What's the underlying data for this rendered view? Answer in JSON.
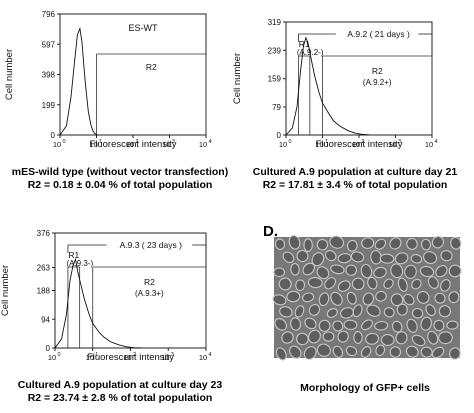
{
  "figure": {
    "panel_d_letter": "D.",
    "micrograph_caption": "Morphology of GFP+ cells"
  },
  "chart_data": [
    {
      "type": "line",
      "title": "ES-WT",
      "xlabel": "Fluorescent intensity",
      "ylabel": "Cell number",
      "xscale": "log",
      "xlim": [
        1,
        10000
      ],
      "ylim": [
        0,
        796
      ],
      "yticks": [
        0,
        199,
        398,
        597,
        796
      ],
      "xtick_labels": [
        {
          "base": "10",
          "exp": "0"
        },
        {
          "base": "10",
          "exp": "1"
        },
        {
          "base": "10",
          "exp": "2"
        },
        {
          "base": "10",
          "exp": "3"
        },
        {
          "base": "10",
          "exp": "4"
        }
      ],
      "gates": [
        {
          "label": "R2",
          "x_start": 10,
          "x_end": 10000
        }
      ],
      "bracket": null,
      "series": [
        {
          "x": [
            1,
            1.5,
            2,
            2.5,
            3,
            3.5,
            4,
            4.5,
            5,
            6,
            7,
            8,
            9,
            10,
            11
          ],
          "y": [
            0,
            60,
            250,
            480,
            660,
            700,
            610,
            460,
            330,
            150,
            70,
            25,
            10,
            4,
            0
          ]
        }
      ],
      "caption_lines": [
        "mES-wild type (without vector transfection)",
        "R2 = 0.18 ± 0.04 % of total population"
      ]
    },
    {
      "type": "line",
      "title": "",
      "xlabel": "Fluorescent intensity",
      "ylabel": "Cell number",
      "xscale": "log",
      "xlim": [
        1,
        10000
      ],
      "ylim": [
        0,
        319
      ],
      "yticks": [
        0,
        79,
        159,
        239,
        319
      ],
      "xtick_labels": [
        {
          "base": "10",
          "exp": "0"
        },
        {
          "base": "10",
          "exp": "1"
        },
        {
          "base": "10",
          "exp": "2"
        },
        {
          "base": "10",
          "exp": "3"
        },
        {
          "base": "10",
          "exp": "4"
        }
      ],
      "gates": [
        {
          "label": "R1",
          "sublabel": "(A.9.2-)",
          "x_start": 2.2,
          "x_end": 4.5
        },
        {
          "label": "R2",
          "sublabel": "(A.9.2+)",
          "x_start": 10,
          "x_end": 10000
        }
      ],
      "bracket": {
        "label": "A.9.2  ( 21 days )",
        "x_start": 2.2,
        "x_end": 10000
      },
      "series": [
        {
          "x": [
            1,
            1.5,
            2,
            2.5,
            3,
            3.5,
            4,
            5,
            6,
            8,
            10,
            15,
            20,
            30,
            50,
            80,
            120,
            200
          ],
          "y": [
            0,
            20,
            80,
            180,
            250,
            275,
            260,
            210,
            170,
            120,
            90,
            60,
            40,
            25,
            12,
            5,
            2,
            0
          ]
        }
      ],
      "caption_lines": [
        "Cultured A.9 population at culture day 21",
        "R2 = 17.81 ± 3.4 % of total population"
      ]
    },
    {
      "type": "line",
      "title": "",
      "xlabel": "Fluorescent intensity",
      "ylabel": "Cell number",
      "xscale": "log",
      "xlim": [
        1,
        10000
      ],
      "ylim": [
        0,
        376
      ],
      "yticks": [
        0,
        94,
        188,
        263,
        376
      ],
      "xtick_labels": [
        {
          "base": "10",
          "exp": "0"
        },
        {
          "base": "10",
          "exp": "1"
        },
        {
          "base": "10",
          "exp": "2"
        },
        {
          "base": "10",
          "exp": "3"
        },
        {
          "base": "10",
          "exp": "4"
        }
      ],
      "gates": [
        {
          "label": "R1",
          "sublabel": "(A.9.3-)",
          "x_start": 2.2,
          "x_end": 4.5
        },
        {
          "label": "R2",
          "sublabel": "(A.9.3+)",
          "x_start": 10,
          "x_end": 10000
        }
      ],
      "bracket": {
        "label": "A.9.3  ( 23 days )",
        "x_start": 2.2,
        "x_end": 10000
      },
      "series": [
        {
          "x": [
            1,
            1.5,
            2,
            2.5,
            3,
            3.5,
            4,
            5,
            6,
            8,
            10,
            15,
            20,
            30,
            50,
            80,
            120,
            200
          ],
          "y": [
            0,
            30,
            110,
            220,
            270,
            290,
            250,
            200,
            160,
            110,
            80,
            50,
            35,
            20,
            10,
            4,
            1,
            0
          ]
        }
      ],
      "caption_lines": [
        "Cultured A.9 population at culture day 23",
        "R2 = 23.74 ± 2.8 % of total population"
      ]
    }
  ]
}
